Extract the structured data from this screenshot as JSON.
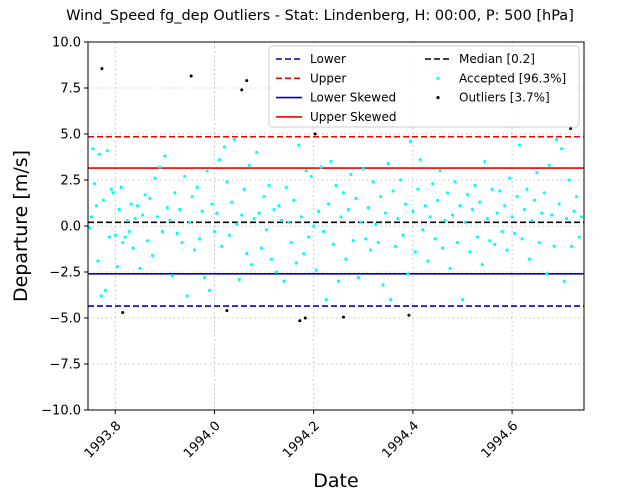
{
  "chart_data": {
    "type": "scatter",
    "title": "Wind_Speed fg_dep Outliers - Stat: Lindenberg, H: 00:00, P: 500 [hPa]",
    "xlabel": "Date",
    "ylabel": "Departure [m/s]",
    "xlim": [
      1993.745,
      1994.745
    ],
    "ylim": [
      -10,
      10
    ],
    "grid": true,
    "legend_position": "upper-right",
    "xticks": [
      1993.8,
      1994.0,
      1994.2,
      1994.4,
      1994.6
    ],
    "xtick_labels": [
      "1993.8",
      "1994.0",
      "1994.2",
      "1994.4",
      "1994.6"
    ],
    "yticks": [
      -10,
      -7.5,
      -5,
      -2.5,
      0,
      2.5,
      5,
      7.5,
      10
    ],
    "ytick_labels": [
      "−10.0",
      "−7.5",
      "−5.0",
      "−2.5",
      "0.0",
      "2.5",
      "5.0",
      "7.5",
      "10.0"
    ],
    "hlines": [
      {
        "name": "Lower",
        "y": -4.35,
        "color": "#0000cc",
        "style": "dashed"
      },
      {
        "name": "Upper",
        "y": 4.85,
        "color": "#ee0000",
        "style": "dashed"
      },
      {
        "name": "Lower Skewed",
        "y": -2.6,
        "color": "#0000cc",
        "style": "solid"
      },
      {
        "name": "Upper Skewed",
        "y": 3.15,
        "color": "#ee0000",
        "style": "solid"
      },
      {
        "name": "Median [0.2]",
        "y": 0.2,
        "color": "#000000",
        "style": "dashed"
      }
    ],
    "series": [
      {
        "name": "Accepted [96.3%]",
        "color": "#00ffff",
        "points": [
          [
            1993.748,
            -0.1
          ],
          [
            1993.752,
            0.5
          ],
          [
            1993.755,
            4.2
          ],
          [
            1993.758,
            2.3
          ],
          [
            1993.762,
            1.1
          ],
          [
            1993.765,
            -1.9
          ],
          [
            1993.768,
            3.9
          ],
          [
            1993.772,
            -3.8
          ],
          [
            1993.776,
            1.4
          ],
          [
            1993.78,
            -3.5
          ],
          [
            1993.784,
            4.1
          ],
          [
            1993.788,
            -0.6
          ],
          [
            1993.792,
            2.0
          ],
          [
            1993.796,
            1.8
          ],
          [
            1993.8,
            -0.5
          ],
          [
            1993.804,
            -2.2
          ],
          [
            1993.808,
            0.9
          ],
          [
            1993.812,
            2.1
          ],
          [
            1993.815,
            -0.9
          ],
          [
            1993.82,
            -0.6
          ],
          [
            1993.824,
            0.3
          ],
          [
            1993.828,
            -0.3
          ],
          [
            1993.832,
            1.2
          ],
          [
            1993.836,
            -1.2
          ],
          [
            1993.84,
            0.4
          ],
          [
            1993.845,
            1.1
          ],
          [
            1993.85,
            -2.3
          ],
          [
            1993.855,
            0.6
          ],
          [
            1993.86,
            1.7
          ],
          [
            1993.865,
            -0.8
          ],
          [
            1993.87,
            1.5
          ],
          [
            1993.875,
            -1.6
          ],
          [
            1993.88,
            2.6
          ],
          [
            1993.885,
            0.5
          ],
          [
            1993.89,
            3.2
          ],
          [
            1993.895,
            -0.3
          ],
          [
            1993.9,
            3.8
          ],
          [
            1993.905,
            1.0
          ],
          [
            1993.91,
            0.3
          ],
          [
            1993.915,
            -2.7
          ],
          [
            1993.92,
            1.8
          ],
          [
            1993.925,
            -0.4
          ],
          [
            1993.93,
            0.9
          ],
          [
            1993.935,
            -0.9
          ],
          [
            1993.94,
            2.7
          ],
          [
            1993.945,
            -3.8
          ],
          [
            1993.95,
            0.2
          ],
          [
            1993.955,
            1.6
          ],
          [
            1993.96,
            -1.3
          ],
          [
            1993.965,
            2.1
          ],
          [
            1993.97,
            -0.7
          ],
          [
            1993.975,
            0.8
          ],
          [
            1993.98,
            -2.8
          ],
          [
            1993.985,
            3.0
          ],
          [
            1993.99,
            -3.5
          ],
          [
            1993.995,
            1.2
          ],
          [
            1994.0,
            -0.3
          ],
          [
            1994.005,
            0.7
          ],
          [
            1994.01,
            3.6
          ],
          [
            1994.015,
            -1.1
          ],
          [
            1994.02,
            4.3
          ],
          [
            1994.025,
            2.4
          ],
          [
            1994.03,
            -0.5
          ],
          [
            1994.035,
            1.3
          ],
          [
            1994.04,
            4.7
          ],
          [
            1994.045,
            0.1
          ],
          [
            1994.05,
            -2.9
          ],
          [
            1994.055,
            0.6
          ],
          [
            1994.06,
            2.0
          ],
          [
            1994.065,
            -1.5
          ],
          [
            1994.07,
            3.3
          ],
          [
            1994.075,
            -2.1
          ],
          [
            1994.08,
            0.4
          ],
          [
            1994.085,
            4.0
          ],
          [
            1994.09,
            0.7
          ],
          [
            1994.095,
            -1.2
          ],
          [
            1994.1,
            1.6
          ],
          [
            1994.105,
            -0.2
          ],
          [
            1994.11,
            2.2
          ],
          [
            1994.115,
            -1.8
          ],
          [
            1994.12,
            0.9
          ],
          [
            1994.125,
            -2.5
          ],
          [
            1994.13,
            1.1
          ],
          [
            1994.135,
            0.3
          ],
          [
            1994.14,
            -3.0
          ],
          [
            1994.145,
            2.1
          ],
          [
            1994.15,
            0.2
          ],
          [
            1994.155,
            -0.9
          ],
          [
            1994.16,
            1.4
          ],
          [
            1994.165,
            -2.0
          ],
          [
            1994.17,
            4.4
          ],
          [
            1994.175,
            0.5
          ],
          [
            1994.18,
            -1.5
          ],
          [
            1994.185,
            3.0
          ],
          [
            1994.19,
            -0.6
          ],
          [
            1994.195,
            2.7
          ],
          [
            1994.2,
            0.0
          ],
          [
            1994.205,
            -2.4
          ],
          [
            1994.21,
            0.8
          ],
          [
            1994.215,
            3.2
          ],
          [
            1994.22,
            -0.3
          ],
          [
            1994.225,
            -4.0
          ],
          [
            1994.23,
            1.2
          ],
          [
            1994.235,
            3.5
          ],
          [
            1994.24,
            -1.0
          ],
          [
            1994.245,
            2.2
          ],
          [
            1994.25,
            -3.0
          ],
          [
            1994.255,
            0.5
          ],
          [
            1994.26,
            1.8
          ],
          [
            1994.265,
            -1.8
          ],
          [
            1994.27,
            0.9
          ],
          [
            1994.275,
            2.8
          ],
          [
            1994.28,
            -0.8
          ],
          [
            1994.285,
            1.5
          ],
          [
            1994.29,
            -2.8
          ],
          [
            1994.295,
            0.2
          ],
          [
            1994.3,
            3.1
          ],
          [
            1994.305,
            -0.7
          ],
          [
            1994.31,
            1.0
          ],
          [
            1994.315,
            -1.3
          ],
          [
            1994.32,
            2.4
          ],
          [
            1994.325,
            0.1
          ],
          [
            1994.33,
            -0.9
          ],
          [
            1994.335,
            1.6
          ],
          [
            1994.34,
            -3.2
          ],
          [
            1994.345,
            0.7
          ],
          [
            1994.35,
            3.4
          ],
          [
            1994.355,
            -4.0
          ],
          [
            1994.36,
            1.9
          ],
          [
            1994.365,
            -1.1
          ],
          [
            1994.37,
            0.4
          ],
          [
            1994.375,
            2.5
          ],
          [
            1994.38,
            -0.5
          ],
          [
            1994.385,
            1.2
          ],
          [
            1994.39,
            -2.6
          ],
          [
            1994.395,
            4.6
          ],
          [
            1994.4,
            0.8
          ],
          [
            1994.405,
            -1.4
          ],
          [
            1994.41,
            2.0
          ],
          [
            1994.415,
            3.6
          ],
          [
            1994.42,
            -0.2
          ],
          [
            1994.425,
            1.1
          ],
          [
            1994.43,
            -1.9
          ],
          [
            1994.435,
            0.5
          ],
          [
            1994.44,
            2.3
          ],
          [
            1994.445,
            -0.7
          ],
          [
            1994.45,
            1.4
          ],
          [
            1994.455,
            3.0
          ],
          [
            1994.46,
            -1.2
          ],
          [
            1994.465,
            0.3
          ],
          [
            1994.47,
            1.8
          ],
          [
            1994.475,
            -2.3
          ],
          [
            1994.48,
            0.6
          ],
          [
            1994.485,
            2.4
          ],
          [
            1994.49,
            -0.9
          ],
          [
            1994.495,
            1.1
          ],
          [
            1994.5,
            -4.0
          ],
          [
            1994.505,
            0.2
          ],
          [
            1994.51,
            1.7
          ],
          [
            1994.515,
            -1.4
          ],
          [
            1994.52,
            0.9
          ],
          [
            1994.525,
            2.2
          ],
          [
            1994.53,
            -0.6
          ],
          [
            1994.535,
            1.3
          ],
          [
            1994.54,
            -2.1
          ],
          [
            1994.545,
            3.5
          ],
          [
            1994.55,
            0.4
          ],
          [
            1994.555,
            -0.8
          ],
          [
            1994.56,
            2.0
          ],
          [
            1994.565,
            -1.0
          ],
          [
            1994.57,
            0.7
          ],
          [
            1994.575,
            1.9
          ],
          [
            1994.58,
            -0.3
          ],
          [
            1994.585,
            1.1
          ],
          [
            1994.59,
            -1.3
          ],
          [
            1994.595,
            2.6
          ],
          [
            1994.6,
            0.5
          ],
          [
            1994.605,
            -0.4
          ],
          [
            1994.61,
            1.6
          ],
          [
            1994.615,
            4.4
          ],
          [
            1994.62,
            -0.7
          ],
          [
            1994.625,
            0.9
          ],
          [
            1994.63,
            2.0
          ],
          [
            1994.635,
            -1.8
          ],
          [
            1994.64,
            0.3
          ],
          [
            1994.645,
            1.4
          ],
          [
            1994.65,
            2.9
          ],
          [
            1994.655,
            -0.9
          ],
          [
            1994.66,
            0.7
          ],
          [
            1994.665,
            1.8
          ],
          [
            1994.67,
            -2.6
          ],
          [
            1994.675,
            3.3
          ],
          [
            1994.68,
            0.6
          ],
          [
            1994.685,
            -1.1
          ],
          [
            1994.69,
            4.7
          ],
          [
            1994.695,
            1.2
          ],
          [
            1994.7,
            4.2
          ],
          [
            1994.705,
            -3.0
          ],
          [
            1994.71,
            0.4
          ],
          [
            1994.715,
            2.5
          ],
          [
            1994.72,
            -1.1
          ],
          [
            1994.725,
            0.8
          ],
          [
            1994.73,
            1.6
          ],
          [
            1994.735,
            -0.6
          ],
          [
            1994.74,
            0.5
          ]
        ]
      },
      {
        "name": "Outliers [3.7%]",
        "color": "#000000",
        "points": [
          [
            1993.773,
            8.55
          ],
          [
            1993.815,
            -4.7
          ],
          [
            1993.953,
            8.15
          ],
          [
            1994.025,
            -4.6
          ],
          [
            1994.055,
            7.4
          ],
          [
            1994.065,
            7.9
          ],
          [
            1994.172,
            -5.15
          ],
          [
            1994.183,
            -5.0
          ],
          [
            1994.203,
            5.0
          ],
          [
            1994.26,
            -4.95
          ],
          [
            1994.392,
            -4.85
          ],
          [
            1994.718,
            5.3
          ]
        ]
      }
    ]
  }
}
